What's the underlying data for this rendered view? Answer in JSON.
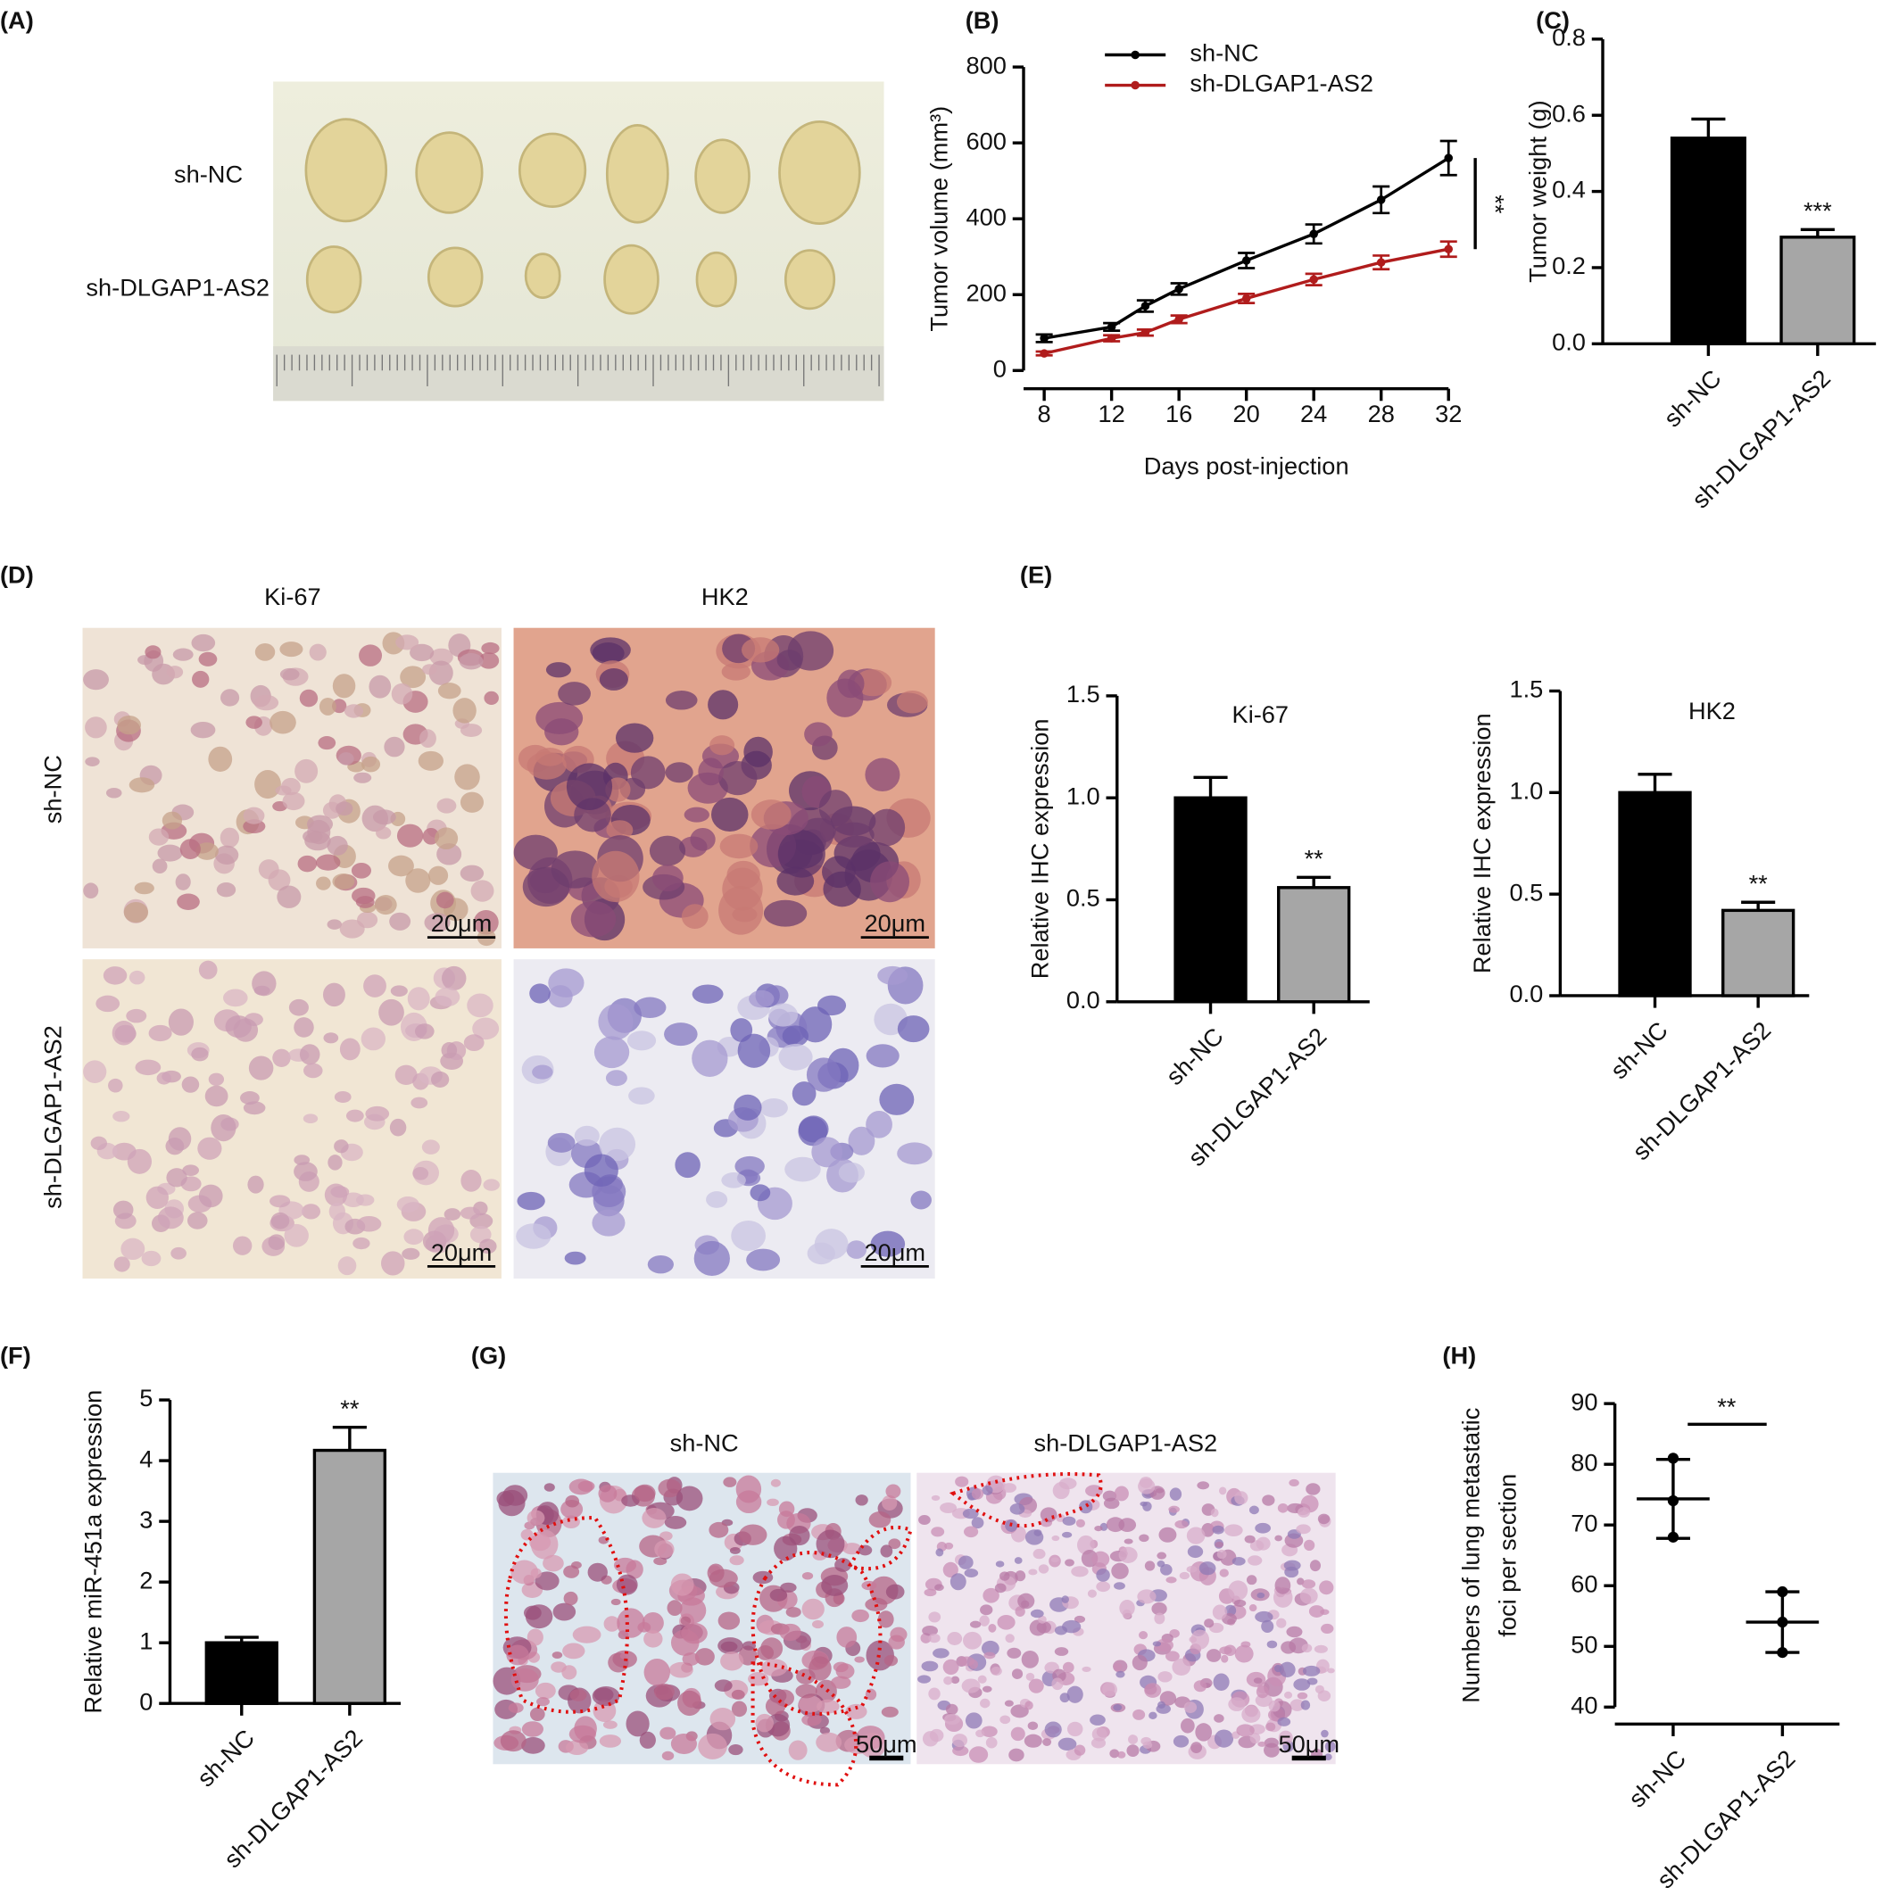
{
  "panel_labels": [
    "(A)",
    "(B)",
    "(C)",
    "(D)",
    "(E)",
    "(F)",
    "(G)",
    "(H)"
  ],
  "photo_A": {
    "rows": [
      "sh-NC",
      "sh-DLGAP1-AS2"
    ]
  },
  "photo_D": {
    "columns": [
      "Ki-67",
      "HK2"
    ],
    "rows": [
      "sh-NC",
      "sh-DLGAP1-AS2"
    ],
    "scale_bar": "20μm"
  },
  "photo_G": {
    "columns": [
      "sh-NC",
      "sh-DLGAP1-AS2"
    ],
    "scale_bar": "50μm"
  },
  "chart_data": [
    {
      "type": "line",
      "x": [
        8,
        12,
        14,
        16,
        20,
        24,
        28,
        32
      ],
      "series": [
        {
          "name": "sh-NC",
          "color": "#000000",
          "values": [
            85,
            115,
            170,
            215,
            290,
            360,
            450,
            560
          ],
          "errors": [
            10,
            10,
            15,
            15,
            20,
            25,
            35,
            45
          ]
        },
        {
          "name": "sh-DLGAP1-AS2",
          "color": "#b01c1c",
          "values": [
            45,
            85,
            100,
            135,
            190,
            240,
            285,
            320
          ],
          "errors": [
            5,
            8,
            8,
            10,
            12,
            15,
            18,
            20
          ]
        }
      ],
      "xlim": [
        8,
        32
      ],
      "xticks": [
        8,
        12,
        16,
        20,
        24,
        28,
        32
      ],
      "ylim": [
        0,
        800
      ],
      "yticks": [
        0,
        200,
        400,
        600,
        800
      ],
      "xlabel": "Days post-injection",
      "ylabel": "Tumor volume (mm³)",
      "significance": "**"
    },
    {
      "type": "bar",
      "categories": [
        "sh-NC",
        "sh-DLGAP1-AS2"
      ],
      "values": [
        0.54,
        0.28
      ],
      "errors": [
        0.05,
        0.02
      ],
      "colors": [
        "#000000",
        "#a6a6a6"
      ],
      "ylim": [
        0,
        0.8
      ],
      "yticks": [
        {
          "value": 0,
          "label": "0.0"
        },
        {
          "value": 0.2,
          "label": "0.2"
        },
        {
          "value": 0.4,
          "label": "0.4"
        },
        {
          "value": 0.6,
          "label": "0.6"
        },
        {
          "value": 0.8,
          "label": "0.8"
        }
      ],
      "ylabel": "Tumor weight (g)",
      "significance": "***"
    },
    {
      "type": "bar",
      "title": "Ki-67",
      "categories": [
        "sh-NC",
        "sh-DLGAP1-AS2"
      ],
      "values": [
        1.0,
        0.56
      ],
      "errors": [
        0.1,
        0.05
      ],
      "colors": [
        "#000000",
        "#a6a6a6"
      ],
      "ylim": [
        0,
        1.5
      ],
      "yticks": [
        {
          "value": 0,
          "label": "0.0"
        },
        {
          "value": 0.5,
          "label": "0.5"
        },
        {
          "value": 1,
          "label": "1.0"
        },
        {
          "value": 1.5,
          "label": "1.5"
        }
      ],
      "ylabel": "Relative IHC expression",
      "significance": "**"
    },
    {
      "type": "bar",
      "title": "HK2",
      "categories": [
        "sh-NC",
        "sh-DLGAP1-AS2"
      ],
      "values": [
        1.0,
        0.42
      ],
      "errors": [
        0.09,
        0.04
      ],
      "colors": [
        "#000000",
        "#a6a6a6"
      ],
      "ylim": [
        0,
        1.5
      ],
      "yticks": [
        {
          "value": 0,
          "label": "0.0"
        },
        {
          "value": 0.5,
          "label": "0.5"
        },
        {
          "value": 1,
          "label": "1.0"
        },
        {
          "value": 1.5,
          "label": "1.5"
        }
      ],
      "ylabel": "Relative IHC expression",
      "significance": "**"
    },
    {
      "type": "bar",
      "categories": [
        "sh-NC",
        "sh-DLGAP1-AS2"
      ],
      "values": [
        1.0,
        4.17
      ],
      "errors": [
        0.09,
        0.38
      ],
      "colors": [
        "#000000",
        "#a6a6a6"
      ],
      "ylim": [
        0,
        5
      ],
      "yticks": [
        0,
        1,
        2,
        3,
        4,
        5
      ],
      "ylabel": "Relative miR-451a expression",
      "significance": "**"
    },
    {
      "type": "dot",
      "categories": [
        "sh-NC",
        "sh-DLGAP1-AS2"
      ],
      "points": [
        [
          81,
          74,
          68
        ],
        [
          59,
          54,
          49
        ]
      ],
      "mean": [
        74.3,
        54
      ],
      "sd": [
        6.5,
        5
      ],
      "color": "#000000",
      "ylim": [
        40,
        90
      ],
      "yticks": [
        40,
        50,
        60,
        70,
        80,
        90
      ],
      "ylabel": [
        "Numbers of lung metastatic",
        "foci per section"
      ],
      "significance": "**"
    }
  ]
}
